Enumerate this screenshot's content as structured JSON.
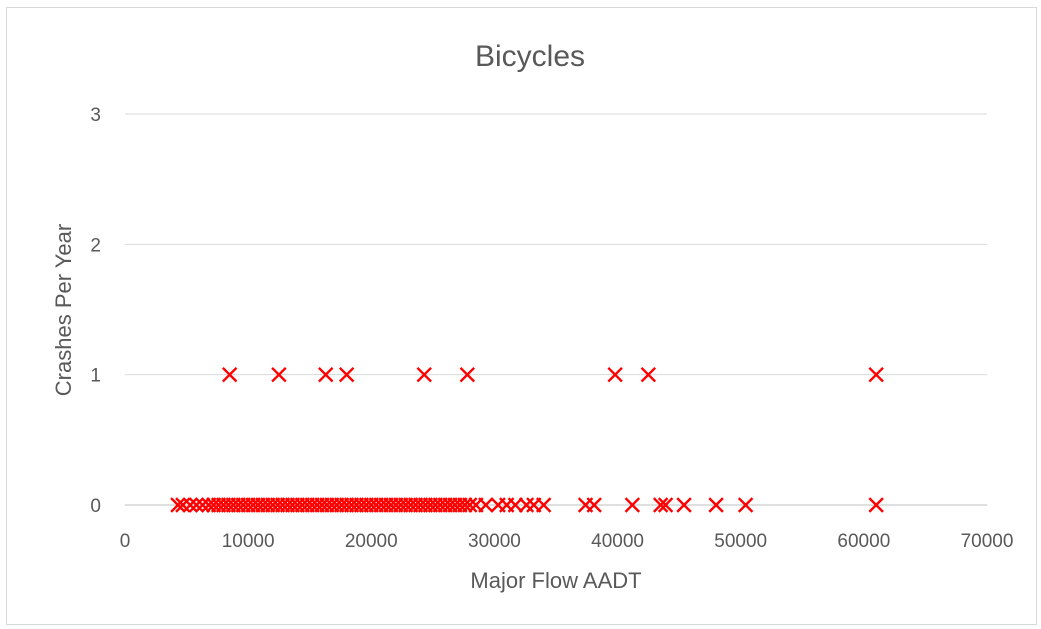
{
  "chart_data": {
    "type": "scatter",
    "title": "Bicycles",
    "xlabel": "Major Flow AADT",
    "ylabel": "Crashes Per Year",
    "xlim": [
      0,
      70000
    ],
    "ylim": [
      0,
      3
    ],
    "x_ticks": [
      0,
      10000,
      20000,
      30000,
      40000,
      50000,
      60000,
      70000
    ],
    "y_ticks": [
      0,
      1,
      2,
      3
    ],
    "grid": "horizontal",
    "legend": "none",
    "marker": "x",
    "series": [
      {
        "color": "#ff0000",
        "points": [
          [
            8500,
            1
          ],
          [
            12500,
            1
          ],
          [
            16300,
            1
          ],
          [
            18000,
            1
          ],
          [
            24300,
            1
          ],
          [
            27800,
            1
          ],
          [
            39800,
            1
          ],
          [
            42500,
            1
          ],
          [
            61000,
            1
          ],
          [
            4300,
            0
          ],
          [
            4700,
            0
          ],
          [
            5300,
            0
          ],
          [
            5800,
            0
          ],
          [
            6300,
            0
          ],
          [
            6800,
            0
          ],
          [
            7200,
            0
          ],
          [
            7600,
            0
          ],
          [
            8000,
            0
          ],
          [
            8400,
            0
          ],
          [
            8800,
            0
          ],
          [
            9200,
            0
          ],
          [
            9600,
            0
          ],
          [
            10000,
            0
          ],
          [
            10400,
            0
          ],
          [
            10800,
            0
          ],
          [
            11200,
            0
          ],
          [
            11600,
            0
          ],
          [
            12000,
            0
          ],
          [
            12400,
            0
          ],
          [
            12800,
            0
          ],
          [
            13200,
            0
          ],
          [
            13600,
            0
          ],
          [
            14000,
            0
          ],
          [
            14400,
            0
          ],
          [
            14800,
            0
          ],
          [
            15200,
            0
          ],
          [
            15600,
            0
          ],
          [
            16000,
            0
          ],
          [
            16400,
            0
          ],
          [
            16800,
            0
          ],
          [
            17200,
            0
          ],
          [
            17600,
            0
          ],
          [
            18000,
            0
          ],
          [
            18400,
            0
          ],
          [
            18800,
            0
          ],
          [
            19200,
            0
          ],
          [
            19600,
            0
          ],
          [
            20000,
            0
          ],
          [
            20400,
            0
          ],
          [
            20800,
            0
          ],
          [
            21200,
            0
          ],
          [
            21600,
            0
          ],
          [
            22000,
            0
          ],
          [
            22400,
            0
          ],
          [
            22800,
            0
          ],
          [
            23200,
            0
          ],
          [
            23600,
            0
          ],
          [
            24000,
            0
          ],
          [
            24400,
            0
          ],
          [
            24800,
            0
          ],
          [
            25200,
            0
          ],
          [
            25600,
            0
          ],
          [
            26000,
            0
          ],
          [
            26400,
            0
          ],
          [
            26800,
            0
          ],
          [
            27200,
            0
          ],
          [
            27600,
            0
          ],
          [
            28000,
            0
          ],
          [
            28500,
            0
          ],
          [
            29300,
            0
          ],
          [
            30300,
            0
          ],
          [
            31000,
            0
          ],
          [
            31700,
            0
          ],
          [
            32600,
            0
          ],
          [
            33200,
            0
          ],
          [
            34000,
            0
          ],
          [
            37400,
            0
          ],
          [
            38100,
            0
          ],
          [
            41200,
            0
          ],
          [
            43500,
            0
          ],
          [
            43900,
            0
          ],
          [
            45400,
            0
          ],
          [
            48000,
            0
          ],
          [
            50400,
            0
          ],
          [
            61000,
            0
          ]
        ]
      }
    ]
  }
}
